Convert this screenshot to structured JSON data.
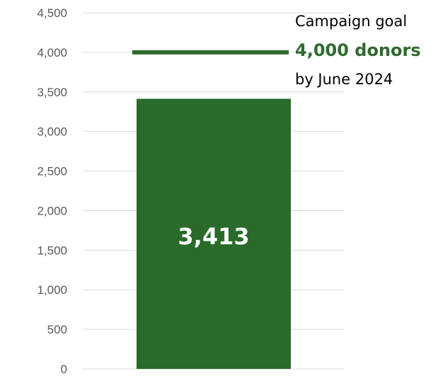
{
  "chart_data": {
    "type": "bar",
    "categories": [
      ""
    ],
    "values": [
      3413
    ],
    "value_label": "3,413",
    "goal_value": 4000,
    "ylim": [
      0,
      4500
    ],
    "yticks": [
      "0",
      "500",
      "1,000",
      "1,500",
      "2,000",
      "2,500",
      "3,000",
      "3,500",
      "4,000",
      "4,500"
    ],
    "ytick_values": [
      0,
      500,
      1000,
      1500,
      2000,
      2500,
      3000,
      3500,
      4000,
      4500
    ],
    "grid": true,
    "title": "",
    "xlabel": "",
    "ylabel": "",
    "bar_color": "#2a6a2a",
    "goal_line_color": "#2f6a2d"
  },
  "annotation": {
    "line1": "Campaign goal",
    "line2": "4,000 donors",
    "line3": "by June 2024"
  },
  "colors": {
    "grid": "#d9d9d9",
    "axis_text": "#595959",
    "accent": "#2f6a2d"
  }
}
